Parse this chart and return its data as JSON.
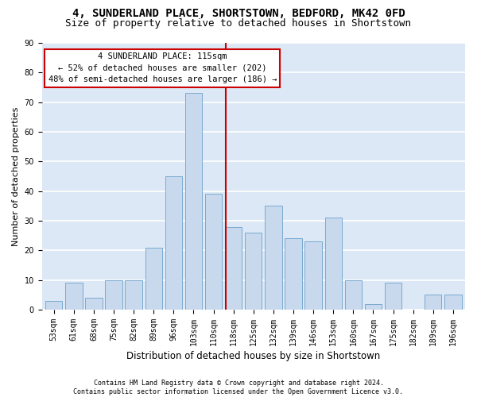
{
  "title": "4, SUNDERLAND PLACE, SHORTSTOWN, BEDFORD, MK42 0FD",
  "subtitle": "Size of property relative to detached houses in Shortstown",
  "xlabel": "Distribution of detached houses by size in Shortstown",
  "ylabel": "Number of detached properties",
  "categories": [
    "53sqm",
    "61sqm",
    "68sqm",
    "75sqm",
    "82sqm",
    "89sqm",
    "96sqm",
    "103sqm",
    "110sqm",
    "118sqm",
    "125sqm",
    "132sqm",
    "139sqm",
    "146sqm",
    "153sqm",
    "160sqm",
    "167sqm",
    "175sqm",
    "182sqm",
    "189sqm",
    "196sqm"
  ],
  "values": [
    3,
    9,
    4,
    10,
    10,
    21,
    45,
    73,
    39,
    28,
    26,
    35,
    24,
    23,
    31,
    10,
    2,
    9,
    0,
    5,
    5
  ],
  "bar_color": "#c8d9ee",
  "bar_edge_color": "#7aaad0",
  "vline_color": "#cc0000",
  "annotation_line1": "4 SUNDERLAND PLACE: 115sqm",
  "annotation_line2": "← 52% of detached houses are smaller (202)",
  "annotation_line3": "48% of semi-detached houses are larger (186) →",
  "annotation_box_edge_color": "#cc0000",
  "footer_line1": "Contains HM Land Registry data © Crown copyright and database right 2024.",
  "footer_line2": "Contains public sector information licensed under the Open Government Licence v3.0.",
  "ylim": [
    0,
    90
  ],
  "yticks": [
    0,
    10,
    20,
    30,
    40,
    50,
    60,
    70,
    80,
    90
  ],
  "plot_bg": "#dce8f5",
  "fig_bg": "#ffffff",
  "grid_color": "#ffffff",
  "title_fontsize": 10,
  "subtitle_fontsize": 9,
  "tick_fontsize": 7,
  "ylabel_fontsize": 8,
  "xlabel_fontsize": 8.5,
  "annotation_fontsize": 7.5,
  "footer_fontsize": 6
}
